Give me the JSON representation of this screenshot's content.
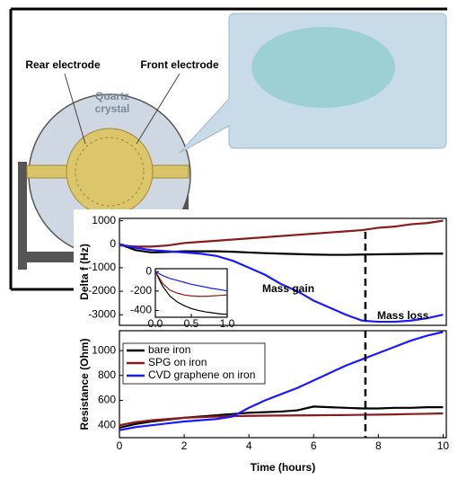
{
  "diagram": {
    "labels": [
      "Rear electrode",
      "Front electrode",
      "Quartz crystal"
    ]
  },
  "chart_data": [
    {
      "type": "line",
      "y_label": "Delta f (Hz)",
      "x": [
        0,
        0.5,
        1,
        1.5,
        2,
        2.5,
        3,
        3.5,
        4,
        4.5,
        5,
        5.5,
        6,
        6.5,
        7,
        7.5,
        8,
        8.5,
        9,
        9.5,
        10
      ],
      "series": [
        {
          "color": "#000000",
          "values": [
            0,
            -250,
            -350,
            -330,
            -300,
            -300,
            -300,
            -320,
            -350,
            -380,
            -400,
            -420,
            -440,
            -450,
            -450,
            -440,
            -430,
            -420,
            -410,
            -400,
            -400
          ]
        },
        {
          "color": "#8b1a1a",
          "values": [
            -50,
            -100,
            -100,
            -50,
            50,
            100,
            150,
            200,
            250,
            300,
            350,
            400,
            450,
            500,
            550,
            600,
            700,
            750,
            850,
            900,
            1000
          ]
        },
        {
          "color": "#1a1aff",
          "values": [
            0,
            -150,
            -250,
            -300,
            -350,
            -400,
            -500,
            -700,
            -1000,
            -1300,
            -1700,
            -2000,
            -2400,
            -2700,
            -3000,
            -3250,
            -3300,
            -3300,
            -3250,
            -3150,
            -3000
          ]
        }
      ],
      "xlim": [
        0,
        10.1
      ],
      "ylim": [
        -3450,
        1100
      ],
      "yticks": [
        1000,
        0,
        -1000,
        -2000,
        -3000
      ],
      "marker_x": 7.6,
      "annotations": [
        "Mass gain",
        "Mass loss"
      ]
    },
    {
      "type": "line",
      "x": [
        0,
        0.1,
        0.2,
        0.3,
        0.4,
        0.5,
        0.6,
        0.7,
        0.8,
        0.9,
        1
      ],
      "series": [
        {
          "color": "#000000",
          "values": [
            0,
            -150,
            -250,
            -310,
            -350,
            -380,
            -400,
            -415,
            -425,
            -435,
            -440
          ]
        },
        {
          "color": "#8b1a1a",
          "values": [
            0,
            -120,
            -190,
            -220,
            -240,
            -250,
            -255,
            -255,
            -250,
            -245,
            -240
          ]
        },
        {
          "color": "#1a1aff",
          "values": [
            0,
            -40,
            -70,
            -90,
            -110,
            -130,
            -145,
            -160,
            -175,
            -185,
            -200
          ]
        }
      ],
      "xlim": [
        0,
        1
      ],
      "ylim": [
        -470,
        30
      ],
      "yticks": [
        0,
        -200,
        -400
      ],
      "xticks": [
        {
          "value": 0,
          "label": "0.0"
        },
        0.5,
        {
          "value": 1,
          "label": "1.0"
        }
      ]
    },
    {
      "type": "line",
      "y_label": "Resistance (Ohm)",
      "x_label": "Time (hours)",
      "x": [
        0,
        0.5,
        1,
        1.5,
        2,
        2.5,
        3,
        3.5,
        4,
        4.5,
        5,
        5.5,
        6,
        6.5,
        7,
        7.5,
        8,
        8.5,
        9,
        9.5,
        10
      ],
      "series": [
        {
          "name": "bare iron",
          "color": "#000000",
          "values": [
            380,
            410,
            430,
            445,
            460,
            470,
            480,
            490,
            500,
            505,
            510,
            520,
            550,
            545,
            540,
            535,
            535,
            540,
            540,
            545,
            545
          ]
        },
        {
          "name": "SPG on iron",
          "color": "#8b1a1a",
          "values": [
            400,
            425,
            440,
            450,
            460,
            465,
            470,
            473,
            475,
            477,
            478,
            479,
            480,
            481,
            482,
            484,
            485,
            487,
            490,
            492,
            495
          ]
        },
        {
          "name": "CVD graphene on iron",
          "color": "#1a1aff",
          "values": [
            360,
            385,
            400,
            415,
            430,
            440,
            450,
            470,
            540,
            600,
            650,
            700,
            760,
            820,
            880,
            930,
            980,
            1030,
            1080,
            1120,
            1150
          ]
        }
      ],
      "xlim": [
        0,
        10.1
      ],
      "ylim": [
        300,
        1160
      ],
      "yticks": [
        400,
        600,
        800,
        1000
      ],
      "xticks": [
        0,
        2,
        4,
        6,
        8,
        10
      ],
      "legend": "upper left"
    }
  ]
}
